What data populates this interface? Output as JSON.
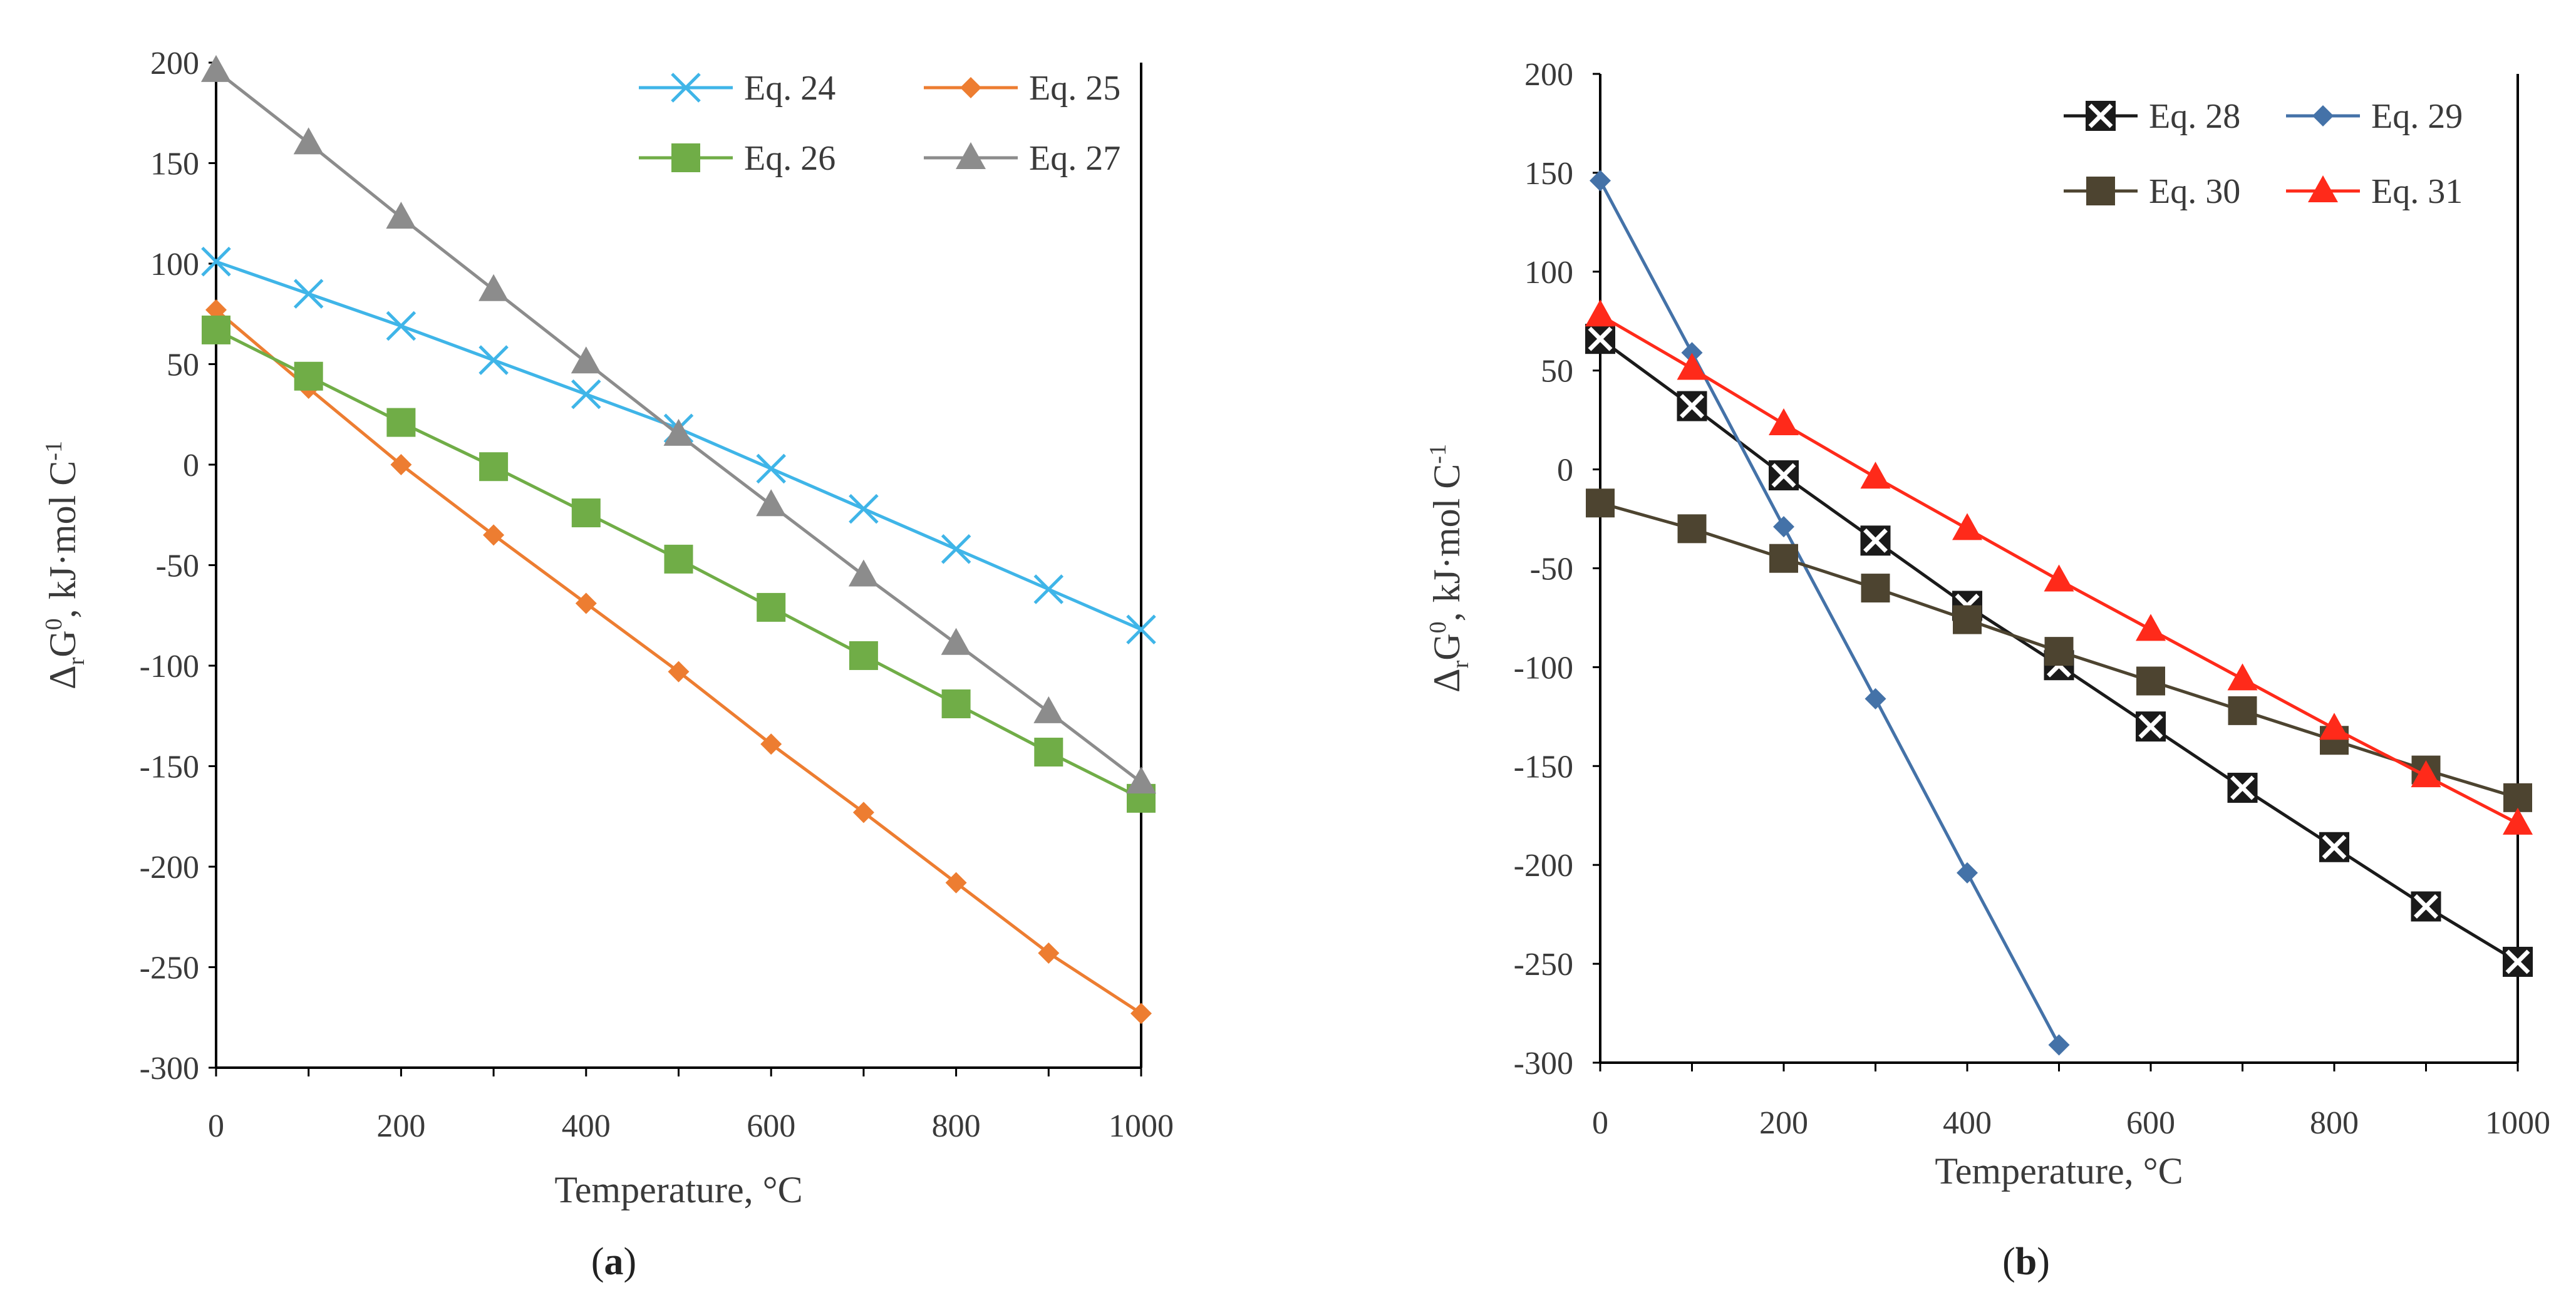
{
  "chart_data": [
    {
      "type": "line",
      "panel": "a",
      "panel_label": "(a)",
      "panel_letter": "a",
      "xlabel": "Temperature, °C",
      "ylabel": "ΔrG0, kJ·mol C-1",
      "ylabel_parts": {
        "delta": "Δ",
        "sub": "r",
        "g": "G",
        "sup": "0",
        "rest": ", kJ·mol C",
        "sup2": "-1"
      },
      "xlim": [
        0,
        1000
      ],
      "ylim": [
        -300,
        200
      ],
      "xticks": [
        0,
        200,
        400,
        600,
        800,
        1000
      ],
      "yticks": [
        200,
        150,
        100,
        50,
        0,
        -50,
        -100,
        -150,
        -200,
        -250,
        -300
      ],
      "x": [
        0,
        100,
        200,
        300,
        400,
        500,
        600,
        700,
        800,
        900,
        1000
      ],
      "series": [
        {
          "name": "Eq. 24",
          "color": "#3fb5e8",
          "marker": "x",
          "values": [
            101,
            85,
            69,
            52,
            35,
            18,
            -2,
            -22,
            -42,
            -62,
            -82
          ]
        },
        {
          "name": "Eq. 25",
          "color": "#ed7d31",
          "marker": "diamond",
          "values": [
            77,
            38,
            0,
            -35,
            -69,
            -103,
            -139,
            -173,
            -208,
            -243,
            -273
          ]
        },
        {
          "name": "Eq. 26",
          "color": "#70ad47",
          "marker": "square",
          "values": [
            67,
            44,
            21,
            -1,
            -24,
            -47,
            -71,
            -95,
            -119,
            -143,
            -166
          ]
        },
        {
          "name": "Eq. 27",
          "color": "#8c8c8c",
          "marker": "triangle",
          "values": [
            196,
            160,
            123,
            87,
            51,
            15,
            -20,
            -55,
            -89,
            -123,
            -158
          ]
        }
      ]
    },
    {
      "type": "line",
      "panel": "b",
      "panel_label": "(b)",
      "panel_letter": "b",
      "xlabel": "Temperature, °C",
      "ylabel": "ΔrG0, kJ·mol C-1",
      "ylabel_parts": {
        "delta": "Δ",
        "sub": "r",
        "g": "G",
        "sup": "0",
        "rest": ", kJ·mol C",
        "sup2": "-1"
      },
      "xlim": [
        0,
        1000
      ],
      "ylim": [
        -300,
        200
      ],
      "xticks": [
        0,
        200,
        400,
        600,
        800,
        1000
      ],
      "yticks": [
        200,
        150,
        100,
        50,
        0,
        -50,
        -100,
        -150,
        -200,
        -250,
        -300
      ],
      "x": [
        0,
        100,
        200,
        300,
        400,
        500,
        600,
        700,
        800,
        900,
        1000
      ],
      "series": [
        {
          "name": "Eq. 28",
          "color": "#1a1a1a",
          "marker": "xbox",
          "values": [
            66,
            32,
            -3,
            -36,
            -69,
            -99,
            -130,
            -161,
            -191,
            -221,
            -249
          ]
        },
        {
          "name": "Eq. 29",
          "color": "#4472a8",
          "marker": "diamond",
          "x": [
            0,
            100,
            200,
            300,
            400,
            500
          ],
          "values": [
            146,
            59,
            -29,
            -116,
            -204,
            -291
          ]
        },
        {
          "name": "Eq. 30",
          "color": "#4d4430",
          "marker": "square",
          "values": [
            -17,
            -30,
            -45,
            -60,
            -76,
            -92,
            -107,
            -122,
            -137,
            -152,
            -166
          ]
        },
        {
          "name": "Eq. 31",
          "color": "#ff2a1a",
          "marker": "triangle",
          "values": [
            78,
            51,
            23,
            -4,
            -30,
            -56,
            -81,
            -106,
            -131,
            -155,
            -179
          ]
        }
      ]
    }
  ]
}
